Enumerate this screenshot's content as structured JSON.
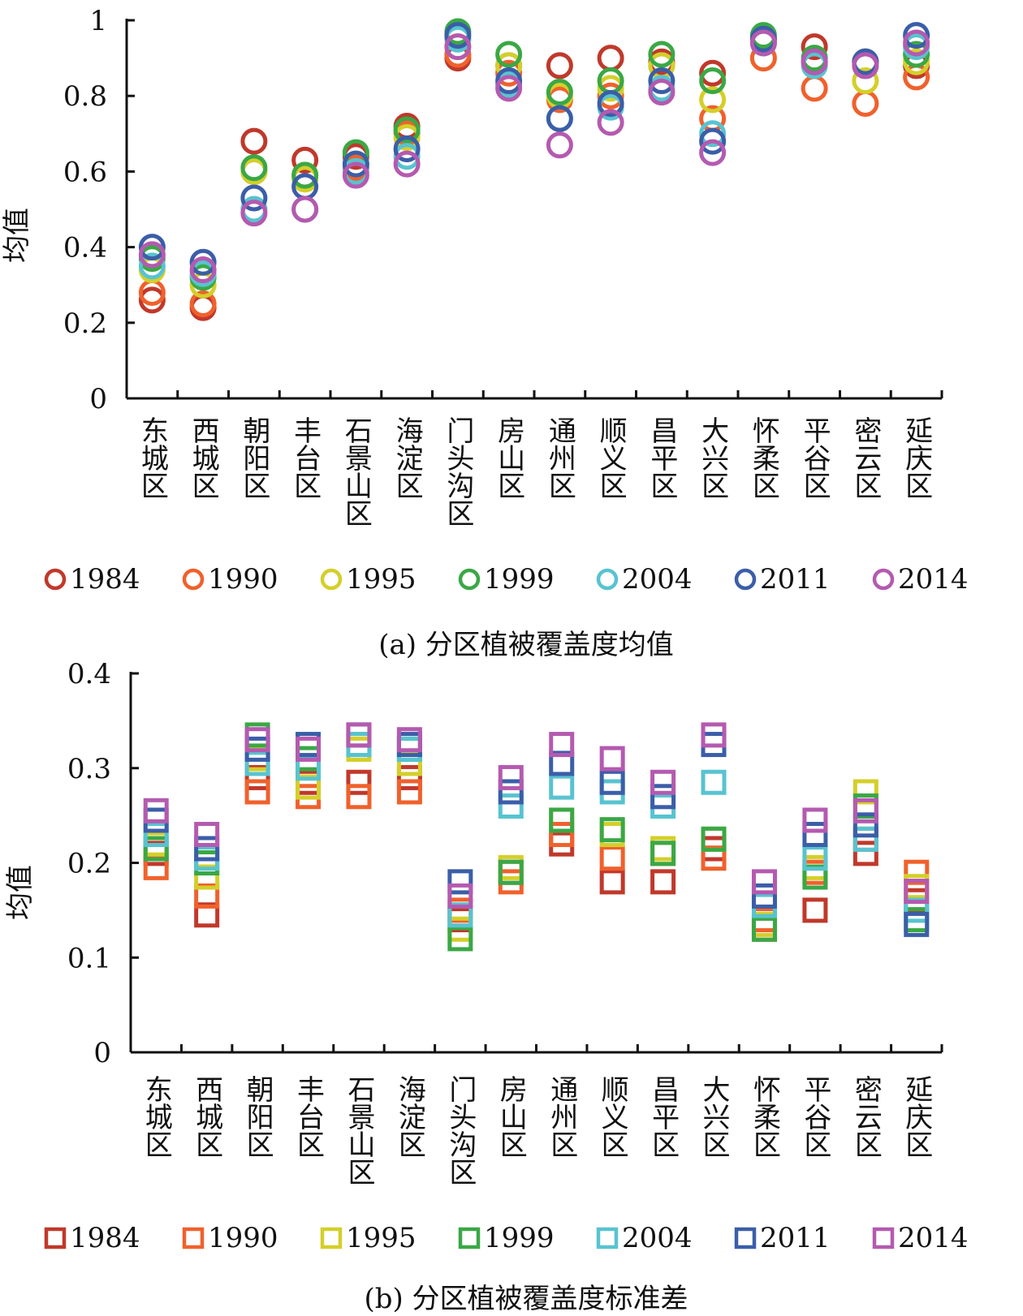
{
  "figure": {
    "caption_a": "(a) 分区植被覆盖度均值",
    "caption_b": "(b) 分区植被覆盖度标准差"
  },
  "chart_data": [
    {
      "type": "scatter",
      "marker": "circle",
      "ylabel": "均值",
      "xlabel": "",
      "ylim": [
        0,
        1
      ],
      "yticks": [
        "0",
        "0.2",
        "0.4",
        "0.6",
        "0.8",
        "1"
      ],
      "ytick_values": [
        0,
        0.2,
        0.4,
        0.6,
        0.8,
        1
      ],
      "legend_position": "bottom",
      "categories": [
        "东城区",
        "西城区",
        "朝阳区",
        "丰台区",
        "石景山区",
        "海淀区",
        "门头沟区",
        "房山区",
        "通州区",
        "顺义区",
        "昌平区",
        "大兴区",
        "怀柔区",
        "平谷区",
        "密云区",
        "延庆区"
      ],
      "series": [
        {
          "name": "1984",
          "color": "#c0392b",
          "values": [
            0.26,
            0.24,
            0.68,
            0.63,
            0.64,
            0.72,
            0.9,
            0.88,
            0.88,
            0.9,
            0.89,
            0.86,
            0.95,
            0.93,
            0.89,
            0.88
          ]
        },
        {
          "name": "1990",
          "color": "#f0612c",
          "values": [
            0.28,
            0.25,
            0.6,
            0.59,
            0.61,
            0.7,
            0.91,
            0.86,
            0.79,
            0.8,
            0.88,
            0.74,
            0.9,
            0.82,
            0.78,
            0.85
          ]
        },
        {
          "name": "1995",
          "color": "#d4cf2a",
          "values": [
            0.34,
            0.3,
            0.6,
            0.58,
            0.62,
            0.69,
            0.93,
            0.88,
            0.8,
            0.82,
            0.88,
            0.79,
            0.94,
            0.89,
            0.84,
            0.89
          ]
        },
        {
          "name": "1999",
          "color": "#3aa845",
          "values": [
            0.37,
            0.32,
            0.61,
            0.59,
            0.65,
            0.71,
            0.97,
            0.91,
            0.81,
            0.84,
            0.91,
            0.84,
            0.96,
            0.9,
            0.89,
            0.91
          ]
        },
        {
          "name": "2004",
          "color": "#58c3d0",
          "values": [
            0.35,
            0.33,
            0.5,
            0.5,
            0.6,
            0.64,
            0.95,
            0.83,
            0.74,
            0.77,
            0.82,
            0.7,
            0.94,
            0.88,
            0.88,
            0.93
          ]
        },
        {
          "name": "2011",
          "color": "#3b5ea8",
          "values": [
            0.4,
            0.36,
            0.53,
            0.56,
            0.62,
            0.66,
            0.96,
            0.84,
            0.74,
            0.78,
            0.84,
            0.68,
            0.95,
            0.89,
            0.89,
            0.96
          ]
        },
        {
          "name": "2014",
          "color": "#b45ab0",
          "values": [
            0.38,
            0.34,
            0.49,
            0.5,
            0.59,
            0.62,
            0.93,
            0.82,
            0.67,
            0.73,
            0.81,
            0.65,
            0.94,
            0.89,
            0.88,
            0.94
          ]
        }
      ]
    },
    {
      "type": "scatter",
      "marker": "square",
      "ylabel": "均值",
      "xlabel": "",
      "ylim": [
        0,
        0.4
      ],
      "yticks": [
        "0",
        "0.1",
        "0.2",
        "0.3",
        "0.4"
      ],
      "ytick_values": [
        0,
        0.1,
        0.2,
        0.3,
        0.4
      ],
      "legend_position": "bottom",
      "categories": [
        "东城区",
        "西城区",
        "朝阳区",
        "丰台区",
        "石景山区",
        "海淀区",
        "门头沟区",
        "房山区",
        "通州区",
        "顺义区",
        "昌平区",
        "大兴区",
        "怀柔区",
        "平谷区",
        "密云区",
        "延庆区"
      ],
      "series": [
        {
          "name": "1984",
          "color": "#c0392b",
          "values": [
            0.21,
            0.145,
            0.29,
            0.285,
            0.285,
            0.29,
            0.14,
            0.19,
            0.22,
            0.18,
            0.18,
            0.215,
            0.13,
            0.15,
            0.21,
            0.16
          ]
        },
        {
          "name": "1990",
          "color": "#f0612c",
          "values": [
            0.195,
            0.165,
            0.275,
            0.27,
            0.27,
            0.275,
            0.15,
            0.18,
            0.23,
            0.205,
            0.21,
            0.205,
            0.14,
            0.19,
            0.225,
            0.19
          ]
        },
        {
          "name": "1995",
          "color": "#d4cf2a",
          "values": [
            0.22,
            0.185,
            0.31,
            0.28,
            0.32,
            0.305,
            0.13,
            0.195,
            0.245,
            0.23,
            0.215,
            0.225,
            0.135,
            0.195,
            0.275,
            0.175
          ]
        },
        {
          "name": "1999",
          "color": "#3aa845",
          "values": [
            0.215,
            0.2,
            0.335,
            0.31,
            0.325,
            0.32,
            0.12,
            0.19,
            0.245,
            0.235,
            0.21,
            0.225,
            0.13,
            0.185,
            0.26,
            0.14
          ]
        },
        {
          "name": "2004",
          "color": "#58c3d0",
          "values": [
            0.23,
            0.205,
            0.305,
            0.3,
            0.325,
            0.32,
            0.145,
            0.26,
            0.28,
            0.275,
            0.26,
            0.285,
            0.155,
            0.205,
            0.225,
            0.15
          ]
        },
        {
          "name": "2011",
          "color": "#3b5ea8",
          "values": [
            0.245,
            0.215,
            0.32,
            0.325,
            0.335,
            0.325,
            0.18,
            0.275,
            0.305,
            0.285,
            0.27,
            0.325,
            0.165,
            0.23,
            0.24,
            0.135
          ]
        },
        {
          "name": "2014",
          "color": "#b45ab0",
          "values": [
            0.255,
            0.23,
            0.33,
            0.32,
            0.335,
            0.33,
            0.165,
            0.29,
            0.325,
            0.31,
            0.285,
            0.335,
            0.18,
            0.245,
            0.255,
            0.17
          ]
        }
      ]
    }
  ]
}
